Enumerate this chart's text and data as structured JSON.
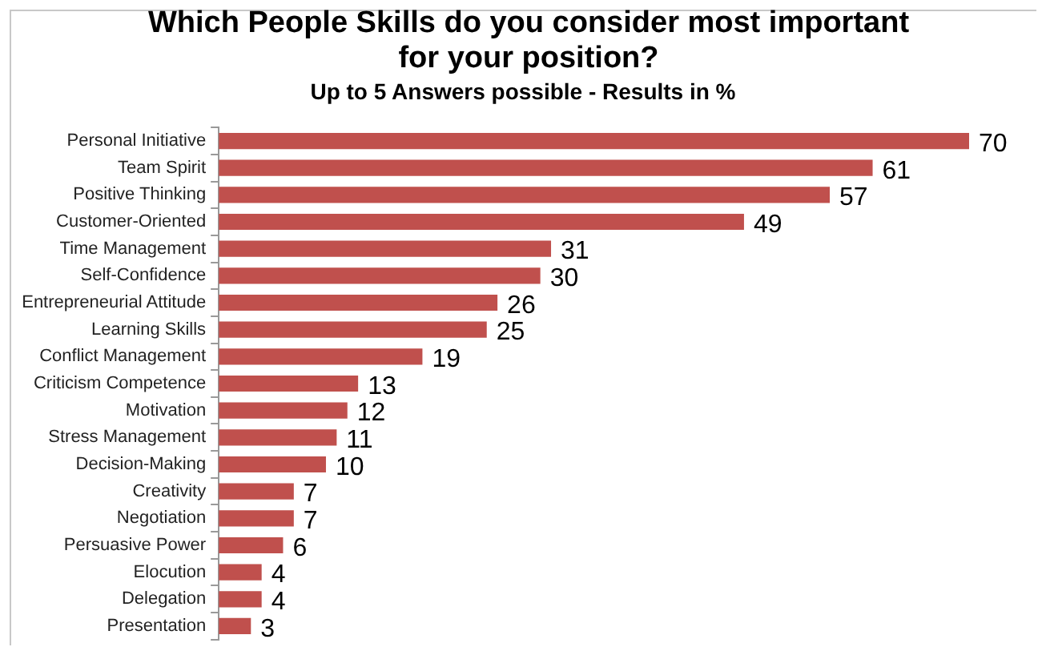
{
  "chart_data": {
    "type": "bar",
    "orientation": "horizontal",
    "title": "Which People Skills do you consider most important for your position?",
    "subtitle": "Up to 5 Answers possible - Results in %",
    "categories": [
      "Personal Initiative",
      "Team Spirit",
      "Positive Thinking",
      "Customer-Oriented",
      "Time Management",
      "Self-Confidence",
      "Entrepreneurial Attitude",
      "Learning Skills",
      "Conflict Management",
      "Criticism Competence",
      "Motivation",
      "Stress Management",
      "Decision-Making",
      "Creativity",
      "Negotiation",
      "Persuasive Power",
      "Elocution",
      "Delegation",
      "Presentation"
    ],
    "values": [
      70,
      61,
      57,
      49,
      31,
      30,
      26,
      25,
      19,
      13,
      12,
      11,
      10,
      7,
      7,
      6,
      4,
      4,
      3
    ],
    "color": "#c0504d",
    "data_labels": true
  }
}
